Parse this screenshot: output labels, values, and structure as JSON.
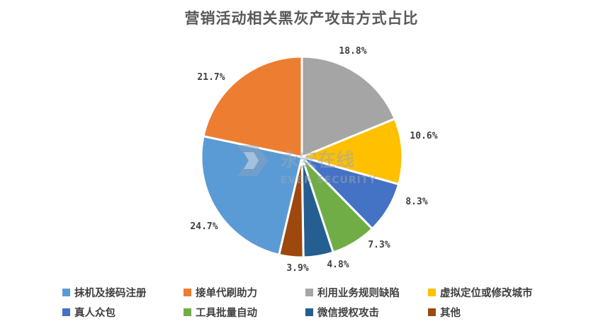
{
  "chart_data": {
    "type": "pie",
    "title": "营销活动相关黑灰产攻击方式占比",
    "slices": [
      {
        "name": "利用业务规则缺陷",
        "value": 18.8,
        "label": "18.8%",
        "color": "#A5A5A5"
      },
      {
        "name": "虚拟定位或修改城市",
        "value": 10.6,
        "label": "10.6%",
        "color": "#FFC000"
      },
      {
        "name": "真人众包",
        "value": 8.3,
        "label": "8.3%",
        "color": "#4472C4"
      },
      {
        "name": "工具批量自动",
        "value": 7.3,
        "label": "7.3%",
        "color": "#70AD47"
      },
      {
        "name": "微信授权攻击",
        "value": 4.8,
        "label": "4.8%",
        "color": "#255E91"
      },
      {
        "name": "其他",
        "value": 3.9,
        "label": "3.9%",
        "color": "#9E480E"
      },
      {
        "name": "抹机及接码注册",
        "value": 24.7,
        "label": "24.7%",
        "color": "#5B9BD5"
      },
      {
        "name": "接单代刷助力",
        "value": 21.7,
        "label": "21.7%",
        "color": "#ED7D31"
      }
    ],
    "legend": {
      "position": "bottom",
      "rows": [
        [
          "抹机及接码注册",
          "接单代刷助力",
          "利用业务规则缺陷",
          "虚拟定位或修改城市"
        ],
        [
          "真人众包",
          "工具批量自动",
          "微信授权攻击",
          "其他"
        ]
      ]
    }
  },
  "watermark": {
    "text_cn": "永安在线",
    "text_en": "EVER SECURITY"
  }
}
